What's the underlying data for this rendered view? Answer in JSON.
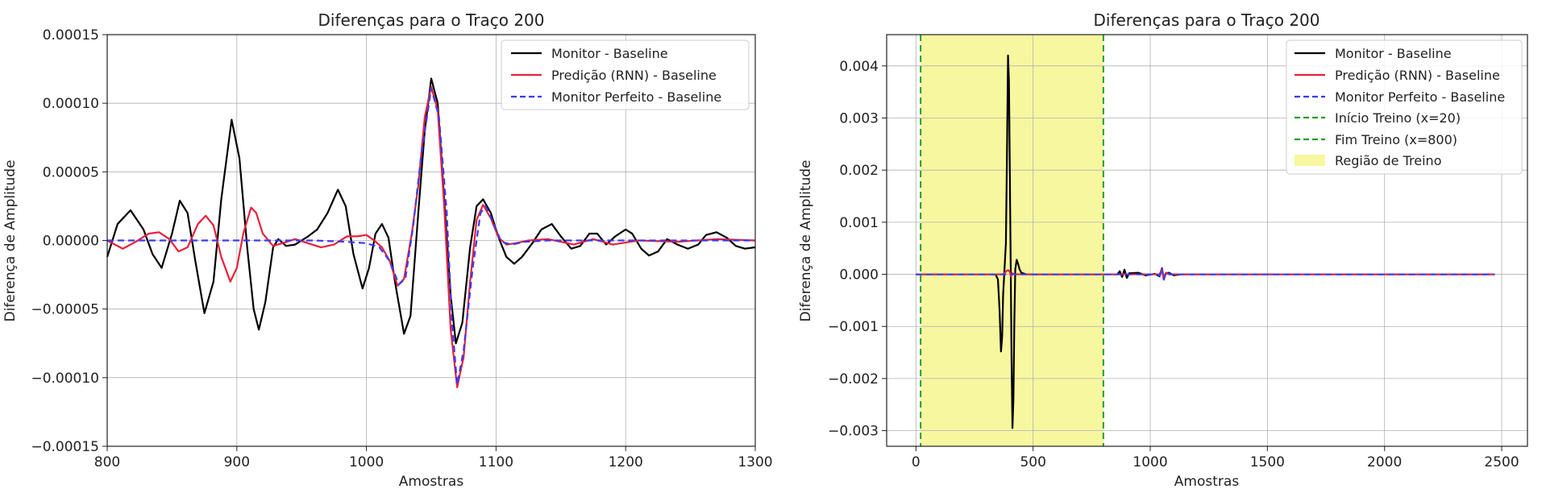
{
  "chart_data": [
    {
      "type": "line",
      "title": "Diferenças para o Traço 200",
      "xlabel": "Amostras",
      "ylabel": "Diferença de Amplitude",
      "xlim": [
        800,
        1300
      ],
      "ylim": [
        -0.00015,
        0.00015
      ],
      "xticks": [
        "800",
        "900",
        "1000",
        "1100",
        "1200",
        "1300"
      ],
      "yticks": [
        "0.00015",
        "0.00010",
        "0.00005",
        "0.00000",
        "−0.00005",
        "−0.00010",
        "−0.00015"
      ],
      "grid": true,
      "legend_position": "top-right",
      "series": [
        {
          "name": "Monitor - Baseline",
          "color": "#000000",
          "style": "solid",
          "points": [
            [
              800,
              -1.2e-05
            ],
            [
              808,
              1.2e-05
            ],
            [
              818,
              2.2e-05
            ],
            [
              828,
              8e-06
            ],
            [
              835,
              -1e-05
            ],
            [
              842,
              -2e-05
            ],
            [
              850,
              5e-06
            ],
            [
              856,
              2.9e-05
            ],
            [
              862,
              2e-05
            ],
            [
              868,
              -1.5e-05
            ],
            [
              875,
              -5.3e-05
            ],
            [
              882,
              -3e-05
            ],
            [
              888,
              3e-05
            ],
            [
              896,
              8.8e-05
            ],
            [
              902,
              6e-05
            ],
            [
              908,
              -5e-06
            ],
            [
              913,
              -5e-05
            ],
            [
              917,
              -6.5e-05
            ],
            [
              922,
              -4.5e-05
            ],
            [
              928,
              -5e-06
            ],
            [
              932,
              1e-06
            ],
            [
              938,
              -4e-06
            ],
            [
              945,
              -3e-06
            ],
            [
              955,
              3e-06
            ],
            [
              962,
              8e-06
            ],
            [
              970,
              2e-05
            ],
            [
              978,
              3.7e-05
            ],
            [
              984,
              2.5e-05
            ],
            [
              990,
              -1e-05
            ],
            [
              997,
              -3.5e-05
            ],
            [
              1002,
              -2e-05
            ],
            [
              1007,
              5e-06
            ],
            [
              1012,
              1.2e-05
            ],
            [
              1017,
              2e-06
            ],
            [
              1022,
              -3e-05
            ],
            [
              1029,
              -6.8e-05
            ],
            [
              1034,
              -5.5e-05
            ],
            [
              1040,
              2e-05
            ],
            [
              1045,
              8e-05
            ],
            [
              1050,
              0.000118
            ],
            [
              1055,
              0.0001
            ],
            [
              1060,
              3e-05
            ],
            [
              1065,
              -4e-05
            ],
            [
              1069,
              -7.5e-05
            ],
            [
              1074,
              -6e-05
            ],
            [
              1080,
              -5e-06
            ],
            [
              1085,
              2.5e-05
            ],
            [
              1090,
              3e-05
            ],
            [
              1096,
              2e-05
            ],
            [
              1102,
              2e-06
            ],
            [
              1108,
              -1.2e-05
            ],
            [
              1114,
              -1.7e-05
            ],
            [
              1120,
              -1.2e-05
            ],
            [
              1128,
              -2e-06
            ],
            [
              1135,
              8e-06
            ],
            [
              1143,
              1.2e-05
            ],
            [
              1150,
              3e-06
            ],
            [
              1158,
              -6e-06
            ],
            [
              1165,
              -4e-06
            ],
            [
              1172,
              5e-06
            ],
            [
              1178,
              5e-06
            ],
            [
              1185,
              -3e-06
            ],
            [
              1192,
              3e-06
            ],
            [
              1200,
              8e-06
            ],
            [
              1205,
              5e-06
            ],
            [
              1212,
              -6e-06
            ],
            [
              1218,
              -1.1e-05
            ],
            [
              1225,
              -8e-06
            ],
            [
              1232,
              1e-06
            ],
            [
              1240,
              -3e-06
            ],
            [
              1248,
              -6e-06
            ],
            [
              1256,
              -3e-06
            ],
            [
              1262,
              4e-06
            ],
            [
              1270,
              6e-06
            ],
            [
              1278,
              2e-06
            ],
            [
              1285,
              -4e-06
            ],
            [
              1292,
              -6e-06
            ],
            [
              1300,
              -5e-06
            ]
          ]
        },
        {
          "name": "Predição (RNN) - Baseline",
          "color": "#e8203a",
          "style": "solid",
          "points": [
            [
              800,
              0
            ],
            [
              812,
              -6e-06
            ],
            [
              822,
              -1e-06
            ],
            [
              832,
              5e-06
            ],
            [
              840,
              6e-06
            ],
            [
              848,
              1e-06
            ],
            [
              855,
              -8e-06
            ],
            [
              862,
              -5e-06
            ],
            [
              870,
              1.2e-05
            ],
            [
              876,
              1.8e-05
            ],
            [
              882,
              1.1e-05
            ],
            [
              888,
              -1.2e-05
            ],
            [
              895,
              -3e-05
            ],
            [
              900,
              -2e-05
            ],
            [
              905,
              5e-06
            ],
            [
              911,
              2.4e-05
            ],
            [
              915,
              2e-05
            ],
            [
              920,
              5e-06
            ],
            [
              928,
              -4e-06
            ],
            [
              935,
              -2e-06
            ],
            [
              945,
              1e-06
            ],
            [
              955,
              -2e-06
            ],
            [
              965,
              -5e-06
            ],
            [
              975,
              -3e-06
            ],
            [
              985,
              3e-06
            ],
            [
              993,
              3e-06
            ],
            [
              1000,
              4e-06
            ],
            [
              1006,
              0
            ],
            [
              1012,
              -5e-06
            ],
            [
              1018,
              -1.5e-05
            ],
            [
              1024,
              -3.3e-05
            ],
            [
              1029,
              -2.8e-05
            ],
            [
              1035,
              5e-06
            ],
            [
              1040,
              4e-05
            ],
            [
              1045,
              9e-05
            ],
            [
              1050,
              0.000112
            ],
            [
              1055,
              9.5e-05
            ],
            [
              1060,
              2.5e-05
            ],
            [
              1065,
              -6.5e-05
            ],
            [
              1070,
              -0.000107
            ],
            [
              1075,
              -8.5e-05
            ],
            [
              1080,
              -3e-05
            ],
            [
              1085,
              1.5e-05
            ],
            [
              1090,
              2.6e-05
            ],
            [
              1096,
              1.6e-05
            ],
            [
              1102,
              2e-06
            ],
            [
              1108,
              -3e-06
            ],
            [
              1115,
              -2e-06
            ],
            [
              1125,
              0
            ],
            [
              1140,
              1e-06
            ],
            [
              1160,
              -3e-06
            ],
            [
              1175,
              1e-06
            ],
            [
              1190,
              -3e-06
            ],
            [
              1210,
              0
            ],
            [
              1240,
              -1e-06
            ],
            [
              1270,
              1e-06
            ],
            [
              1300,
              0
            ]
          ]
        },
        {
          "name": "Monitor Perfeito - Baseline",
          "color": "#3b3bf0",
          "style": "dashed",
          "points": [
            [
              800,
              0
            ],
            [
              900,
              0
            ],
            [
              960,
              0
            ],
            [
              985,
              -1e-06
            ],
            [
              1000,
              -2e-06
            ],
            [
              1010,
              -5e-06
            ],
            [
              1018,
              -1.5e-05
            ],
            [
              1025,
              -3.2e-05
            ],
            [
              1030,
              -2.8e-05
            ],
            [
              1036,
              1e-05
            ],
            [
              1042,
              6e-05
            ],
            [
              1050,
              0.000111
            ],
            [
              1056,
              9e-05
            ],
            [
              1062,
              2e-05
            ],
            [
              1066,
              -6e-05
            ],
            [
              1070,
              -0.000105
            ],
            [
              1075,
              -8e-05
            ],
            [
              1082,
              -2e-05
            ],
            [
              1088,
              2e-05
            ],
            [
              1092,
              2.5e-05
            ],
            [
              1098,
              1.3e-05
            ],
            [
              1104,
              -1e-06
            ],
            [
              1112,
              -3e-06
            ],
            [
              1122,
              -1e-06
            ],
            [
              1140,
              0
            ],
            [
              1300,
              0
            ]
          ]
        }
      ]
    },
    {
      "type": "line",
      "title": "Diferenças para o Traço 200",
      "xlabel": "Amostras",
      "ylabel": "Diferença de Amplitude",
      "xlim": [
        -125,
        2610
      ],
      "ylim": [
        -0.0033,
        0.0046
      ],
      "xticks": [
        "0",
        "500",
        "1000",
        "1500",
        "2000",
        "2500"
      ],
      "yticks": [
        "0.004",
        "0.003",
        "0.002",
        "0.001",
        "0.000",
        "−0.001",
        "−0.002",
        "−0.003"
      ],
      "grid": true,
      "legend_position": "top-right",
      "training_region": {
        "start": 20,
        "end": 800,
        "color": "#f7f7a0",
        "line_color": "#2a9d2a"
      },
      "series": [
        {
          "name": "Monitor - Baseline",
          "color": "#000000",
          "style": "solid",
          "points": [
            [
              0,
              0
            ],
            [
              340,
              0
            ],
            [
              350,
              -0.0001
            ],
            [
              357,
              -0.0007
            ],
            [
              363,
              -0.00148
            ],
            [
              368,
              -0.0012
            ],
            [
              372,
              -0.0004
            ],
            [
              378,
              0.0001
            ],
            [
              384,
              0.0006
            ],
            [
              389,
              0.0025
            ],
            [
              393,
              0.0042
            ],
            [
              397,
              0.0037
            ],
            [
              401,
              0.0018
            ],
            [
              405,
              -0.0001
            ],
            [
              408,
              -0.0016
            ],
            [
              412,
              -0.00295
            ],
            [
              416,
              -0.0024
            ],
            [
              420,
              -0.0009
            ],
            [
              424,
              0.0001
            ],
            [
              430,
              0.00028
            ],
            [
              436,
              0.0002
            ],
            [
              442,
              0.0001
            ],
            [
              450,
              3e-05
            ],
            [
              470,
              0
            ],
            [
              860,
              0
            ],
            [
              870,
              6e-05
            ],
            [
              880,
              -5e-05
            ],
            [
              890,
              9e-05
            ],
            [
              900,
              -7e-05
            ],
            [
              910,
              2e-05
            ],
            [
              950,
              3e-05
            ],
            [
              980,
              -2e-05
            ],
            [
              1020,
              1e-05
            ],
            [
              1040,
              -4e-05
            ],
            [
              1050,
              0.00012
            ],
            [
              1058,
              -0.0001
            ],
            [
              1066,
              2e-05
            ],
            [
              1080,
              3e-05
            ],
            [
              1100,
              -2e-05
            ],
            [
              1130,
              0
            ],
            [
              2470,
              0
            ]
          ]
        },
        {
          "name": "Predição (RNN) - Baseline",
          "color": "#e8203a",
          "style": "solid",
          "points": [
            [
              0,
              0
            ],
            [
              370,
              0
            ],
            [
              380,
              3e-05
            ],
            [
              388,
              7e-05
            ],
            [
              394,
              8e-05
            ],
            [
              400,
              5e-05
            ],
            [
              406,
              -4e-05
            ],
            [
              412,
              2e-05
            ],
            [
              420,
              0
            ],
            [
              1040,
              0
            ],
            [
              1050,
              0.00011
            ],
            [
              1058,
              -0.0001
            ],
            [
              1068,
              3e-05
            ],
            [
              1080,
              0
            ],
            [
              2470,
              0
            ]
          ]
        },
        {
          "name": "Monitor Perfeito - Baseline",
          "color": "#3b3bf0",
          "style": "dashed",
          "points": [
            [
              0,
              0
            ],
            [
              1030,
              0
            ],
            [
              1040,
              -3e-05
            ],
            [
              1050,
              0.00011
            ],
            [
              1058,
              -0.0001
            ],
            [
              1066,
              3e-05
            ],
            [
              1075,
              2e-05
            ],
            [
              1085,
              0
            ],
            [
              2470,
              0
            ]
          ]
        },
        {
          "name": "Início Treino (x=20)",
          "color": "#2a9d2a",
          "style": "dashed",
          "vertical_at": 20
        },
        {
          "name": "Fim Treino (x=800)",
          "color": "#2a9d2a",
          "style": "dashed",
          "vertical_at": 800
        },
        {
          "name": "Região de Treino",
          "color": "#f7f7a0",
          "style": "fill"
        }
      ]
    }
  ]
}
